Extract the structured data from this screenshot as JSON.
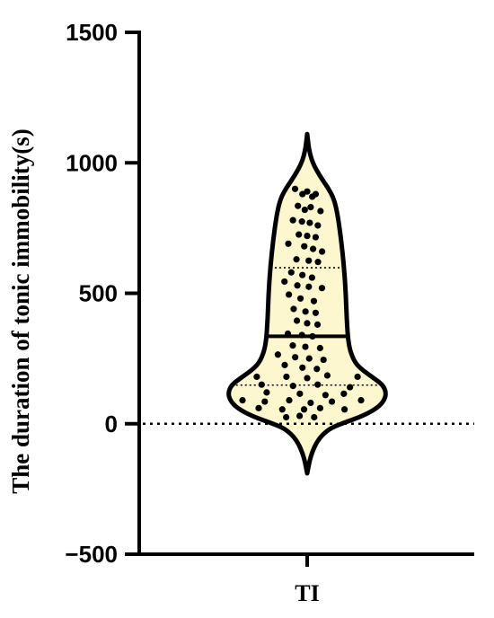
{
  "chart_data": {
    "type": "violin",
    "title": "",
    "ylabel": "The duration of tonic immobility(s)",
    "xlabel": "",
    "categories": [
      "TI"
    ],
    "ylim": [
      -500,
      1500
    ],
    "yticks": [
      -500,
      0,
      500,
      1000,
      1500
    ],
    "ytick_labels": [
      "−500",
      "0",
      "500",
      "1000",
      "1500"
    ],
    "reference_line_y": 0,
    "violin_extent": [
      -190,
      1110
    ],
    "median": 335,
    "quartiles": [
      148,
      598
    ],
    "colors": {
      "fill": "#fdf7cf",
      "outline": "#000000",
      "points": "#000000"
    },
    "points": [
      {
        "x": -0.75,
        "y": 900
      },
      {
        "x": -0.25,
        "y": 880
      },
      {
        "x": 0.0,
        "y": 890
      },
      {
        "x": 0.25,
        "y": 870
      },
      {
        "x": 0.45,
        "y": 880
      },
      {
        "x": -0.4,
        "y": 835
      },
      {
        "x": -0.1,
        "y": 820
      },
      {
        "x": 0.15,
        "y": 830
      },
      {
        "x": 0.55,
        "y": 815
      },
      {
        "x": -0.55,
        "y": 780
      },
      {
        "x": -0.2,
        "y": 775
      },
      {
        "x": 0.1,
        "y": 770
      },
      {
        "x": 0.4,
        "y": 760
      },
      {
        "x": -0.3,
        "y": 725
      },
      {
        "x": 0.0,
        "y": 720
      },
      {
        "x": 0.3,
        "y": 715
      },
      {
        "x": -0.65,
        "y": 690
      },
      {
        "x": -0.1,
        "y": 680
      },
      {
        "x": 0.2,
        "y": 670
      },
      {
        "x": 0.5,
        "y": 660
      },
      {
        "x": -0.35,
        "y": 630
      },
      {
        "x": 0.05,
        "y": 625
      },
      {
        "x": 0.35,
        "y": 620
      },
      {
        "x": -0.5,
        "y": 580
      },
      {
        "x": -0.15,
        "y": 570
      },
      {
        "x": 0.15,
        "y": 560
      },
      {
        "x": -0.7,
        "y": 545
      },
      {
        "x": -0.3,
        "y": 530
      },
      {
        "x": 0.05,
        "y": 525
      },
      {
        "x": 0.45,
        "y": 520
      },
      {
        "x": -0.55,
        "y": 495
      },
      {
        "x": -0.2,
        "y": 480
      },
      {
        "x": 0.2,
        "y": 470
      },
      {
        "x": -0.4,
        "y": 440
      },
      {
        "x": -0.05,
        "y": 430
      },
      {
        "x": 0.25,
        "y": 425
      },
      {
        "x": -0.3,
        "y": 395
      },
      {
        "x": 0.0,
        "y": 385
      },
      {
        "x": 0.3,
        "y": 380
      },
      {
        "x": -0.55,
        "y": 345
      },
      {
        "x": -0.15,
        "y": 340
      },
      {
        "x": 0.15,
        "y": 335
      },
      {
        "x": -0.4,
        "y": 300
      },
      {
        "x": -0.05,
        "y": 295
      },
      {
        "x": 0.35,
        "y": 290
      },
      {
        "x": -0.75,
        "y": 265
      },
      {
        "x": -0.3,
        "y": 255
      },
      {
        "x": 0.05,
        "y": 250
      },
      {
        "x": 0.4,
        "y": 245
      },
      {
        "x": -0.5,
        "y": 225
      },
      {
        "x": -0.1,
        "y": 215
      },
      {
        "x": 0.2,
        "y": 210
      },
      {
        "x": -0.85,
        "y": 180
      },
      {
        "x": -0.35,
        "y": 180
      },
      {
        "x": 0.0,
        "y": 175
      },
      {
        "x": 0.35,
        "y": 185
      },
      {
        "x": 0.85,
        "y": 180
      },
      {
        "x": -0.65,
        "y": 150
      },
      {
        "x": -0.2,
        "y": 145
      },
      {
        "x": 0.15,
        "y": 150
      },
      {
        "x": 0.6,
        "y": 140
      },
      {
        "x": -0.55,
        "y": 120
      },
      {
        "x": -0.1,
        "y": 115
      },
      {
        "x": 0.25,
        "y": 110
      },
      {
        "x": 0.5,
        "y": 115
      },
      {
        "x": -0.9,
        "y": 90
      },
      {
        "x": -0.6,
        "y": 85
      },
      {
        "x": -0.25,
        "y": 90
      },
      {
        "x": 0.05,
        "y": 80
      },
      {
        "x": 0.35,
        "y": 85
      },
      {
        "x": 0.75,
        "y": 90
      },
      {
        "x": -0.75,
        "y": 60
      },
      {
        "x": -0.4,
        "y": 55
      },
      {
        "x": -0.05,
        "y": 55
      },
      {
        "x": 0.2,
        "y": 60
      },
      {
        "x": 0.6,
        "y": 55
      },
      {
        "x": -0.45,
        "y": 25
      },
      {
        "x": -0.15,
        "y": 30
      },
      {
        "x": 0.15,
        "y": 25
      }
    ]
  }
}
